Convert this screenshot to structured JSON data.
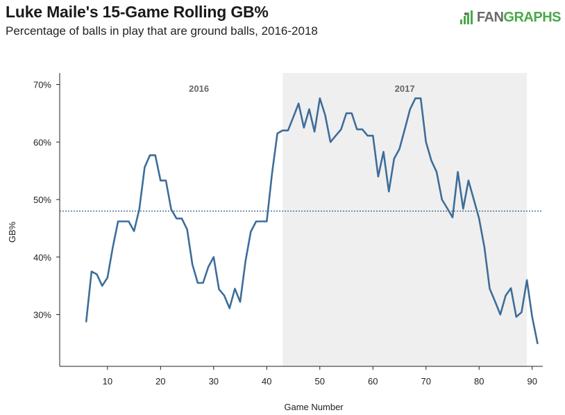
{
  "title": "Luke Maile's 15-Game Rolling GB%",
  "subtitle": "Percentage of balls in play that are ground balls, 2016-2018",
  "logo": {
    "fan": "FAN",
    "graphs": "GRAPHS",
    "icon": "fangraphs-logo-icon"
  },
  "colors": {
    "line": "#3d6d99",
    "shade": "#efefef",
    "ref": "#2f5d88"
  },
  "chart_data": {
    "type": "line",
    "title": "Luke Maile's 15-Game Rolling GB%",
    "xlabel": "Game Number",
    "ylabel": "GB%",
    "xlim": [
      1,
      92
    ],
    "ylim": [
      21,
      72
    ],
    "xticks": [
      10,
      20,
      30,
      40,
      50,
      60,
      70,
      80,
      90
    ],
    "yticks": [
      30,
      40,
      50,
      60,
      70
    ],
    "ytick_labels": [
      "30%",
      "40%",
      "50%",
      "60%",
      "70%"
    ],
    "reference_line": {
      "y": 48,
      "style": "dotted"
    },
    "regions": [
      {
        "label": "2016",
        "x_start": 1,
        "x_end": 43,
        "shaded": false
      },
      {
        "label": "2017",
        "x_start": 43,
        "x_end": 89,
        "shaded": true
      }
    ],
    "grid": false,
    "series": [
      {
        "x": [
          6,
          7,
          8,
          9,
          10,
          11,
          12,
          13,
          14,
          15,
          16,
          17,
          18,
          19,
          20,
          21,
          22,
          23,
          24,
          25,
          26,
          27,
          28,
          29,
          30,
          31,
          32,
          33,
          34,
          35,
          36,
          37,
          38,
          39,
          40,
          41,
          42,
          43,
          44,
          45,
          46,
          47,
          48,
          49,
          50,
          51,
          52,
          53,
          54,
          55,
          56,
          57,
          58,
          59,
          60,
          61,
          62,
          63,
          64,
          65,
          66,
          67,
          68,
          69,
          70,
          71,
          72,
          73,
          74,
          75,
          76,
          77,
          78,
          79,
          80,
          81,
          82,
          83,
          84,
          85,
          86,
          87,
          88,
          89,
          90,
          91
        ],
        "y": [
          28.8,
          37.5,
          37.0,
          35.0,
          36.4,
          41.7,
          46.2,
          46.2,
          46.2,
          44.5,
          48.3,
          55.6,
          57.7,
          57.7,
          53.3,
          53.3,
          48.3,
          46.7,
          46.7,
          44.8,
          38.7,
          35.5,
          35.5,
          38.3,
          40.0,
          34.4,
          33.3,
          31.1,
          34.5,
          32.2,
          39.3,
          44.4,
          46.2,
          46.2,
          46.2,
          54.5,
          61.5,
          62.0,
          62.0,
          64.3,
          66.7,
          62.5,
          65.7,
          61.8,
          67.6,
          64.7,
          60.0,
          61.1,
          62.2,
          65.0,
          65.0,
          62.2,
          62.2,
          61.1,
          61.1,
          54.0,
          58.3,
          51.4,
          57.1,
          58.8,
          62.2,
          65.7,
          67.6,
          67.6,
          60.0,
          56.8,
          54.8,
          50.0,
          48.5,
          46.9,
          54.8,
          48.4,
          53.3,
          50.0,
          46.7,
          41.7,
          34.5,
          32.3,
          30.0,
          33.3,
          34.6,
          29.6,
          30.4,
          36.0,
          29.6,
          25.0
        ]
      }
    ]
  }
}
